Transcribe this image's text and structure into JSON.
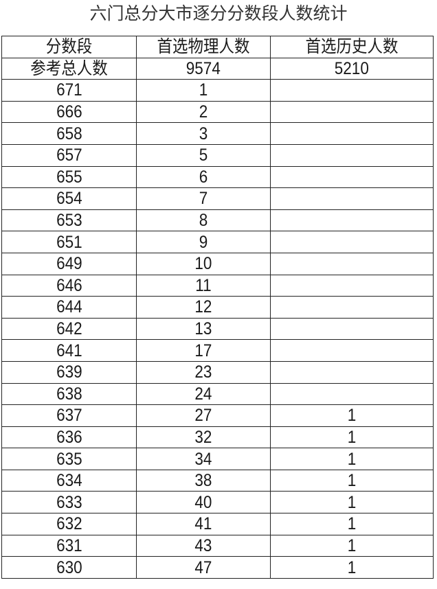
{
  "title": "六门总分大市逐分分数段人数统计",
  "headers": [
    "分数段",
    "首选物理人数",
    "首选历史人数"
  ],
  "total_row": {
    "label": "参考总人数",
    "physics": "9574",
    "history": "5210"
  },
  "rows": [
    {
      "score": "671",
      "physics": "1",
      "history": ""
    },
    {
      "score": "666",
      "physics": "2",
      "history": ""
    },
    {
      "score": "658",
      "physics": "3",
      "history": ""
    },
    {
      "score": "657",
      "physics": "5",
      "history": ""
    },
    {
      "score": "655",
      "physics": "6",
      "history": ""
    },
    {
      "score": "654",
      "physics": "7",
      "history": ""
    },
    {
      "score": "653",
      "physics": "8",
      "history": ""
    },
    {
      "score": "651",
      "physics": "9",
      "history": ""
    },
    {
      "score": "649",
      "physics": "10",
      "history": ""
    },
    {
      "score": "646",
      "physics": "11",
      "history": ""
    },
    {
      "score": "644",
      "physics": "12",
      "history": ""
    },
    {
      "score": "642",
      "physics": "13",
      "history": ""
    },
    {
      "score": "641",
      "physics": "17",
      "history": ""
    },
    {
      "score": "639",
      "physics": "23",
      "history": ""
    },
    {
      "score": "638",
      "physics": "24",
      "history": ""
    },
    {
      "score": "637",
      "physics": "27",
      "history": "1"
    },
    {
      "score": "636",
      "physics": "32",
      "history": "1"
    },
    {
      "score": "635",
      "physics": "34",
      "history": "1"
    },
    {
      "score": "634",
      "physics": "38",
      "history": "1"
    },
    {
      "score": "633",
      "physics": "40",
      "history": "1"
    },
    {
      "score": "632",
      "physics": "41",
      "history": "1"
    },
    {
      "score": "631",
      "physics": "43",
      "history": "1"
    },
    {
      "score": "630",
      "physics": "47",
      "history": "1"
    }
  ]
}
